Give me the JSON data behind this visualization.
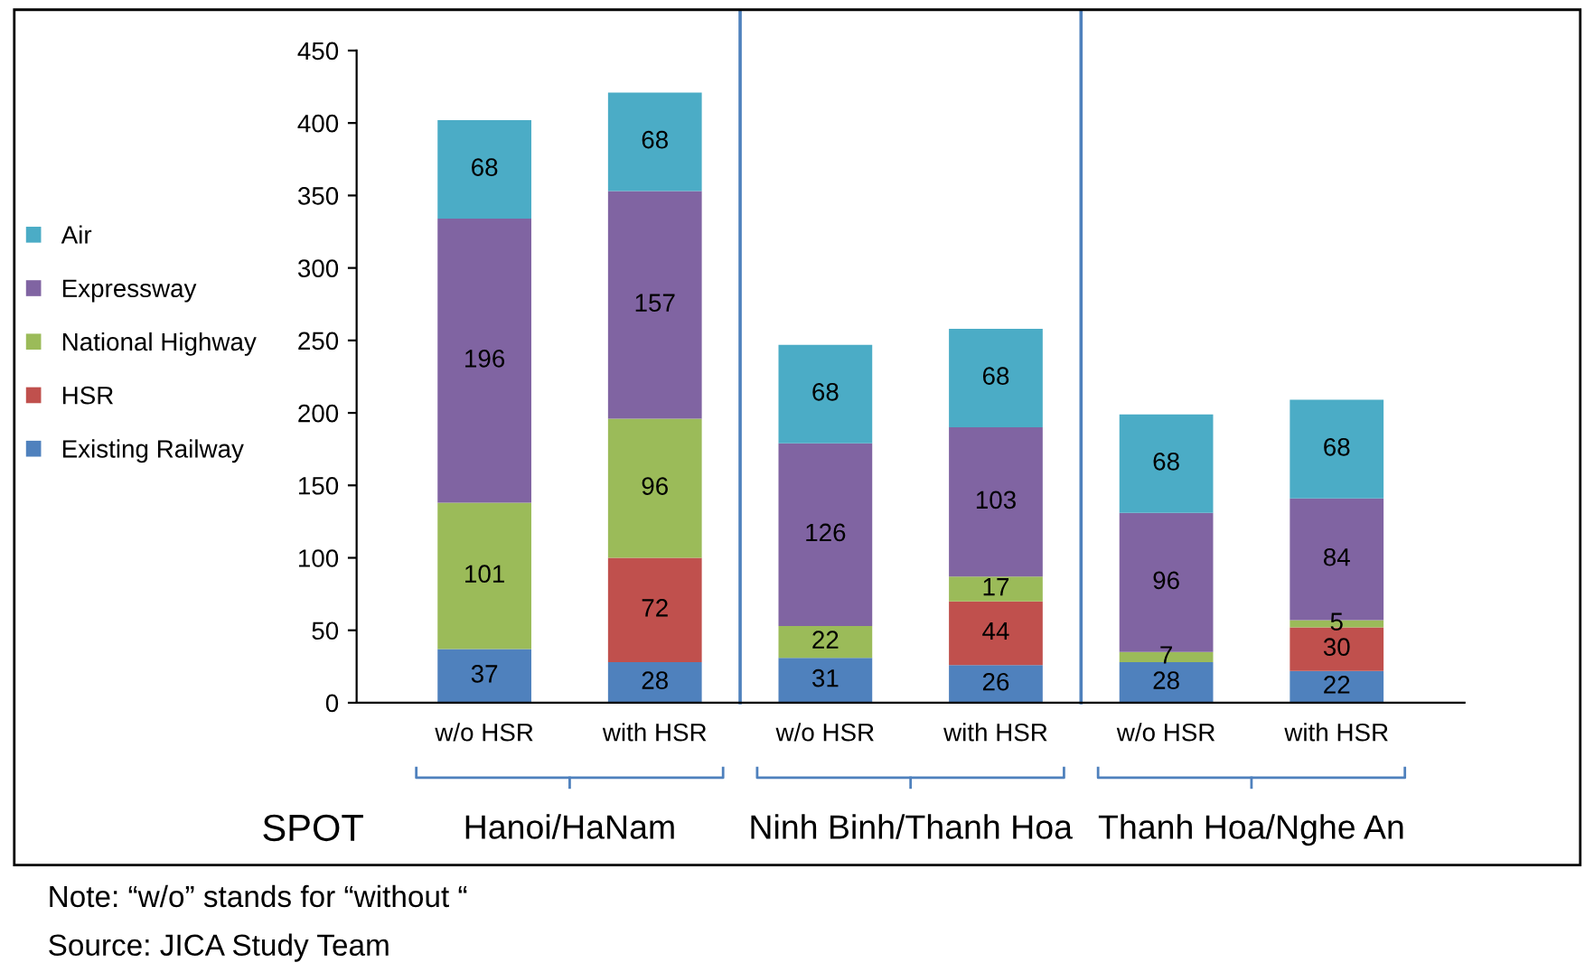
{
  "chart_data": {
    "type": "bar",
    "stacked": true,
    "data_labels": true,
    "legend": "left",
    "grid": false,
    "categories": [
      "w/o HSR",
      "with HSR",
      "w/o HSR",
      "with HSR",
      "w/o HSR",
      "with HSR"
    ],
    "series": [
      {
        "name": "Existing Railway",
        "color": "#4f81bd",
        "values": [
          37,
          28,
          31,
          26,
          28,
          22
        ]
      },
      {
        "name": "HSR",
        "color": "#c0504d",
        "values": [
          null,
          72,
          null,
          44,
          null,
          30
        ]
      },
      {
        "name": "National Highway",
        "color": "#9bbb59",
        "values": [
          101,
          96,
          22,
          17,
          7,
          5
        ]
      },
      {
        "name": "Expressway",
        "color": "#8064a2",
        "values": [
          196,
          157,
          126,
          103,
          96,
          84
        ]
      },
      {
        "name": "Air",
        "color": "#4bacc6",
        "values": [
          68,
          68,
          68,
          68,
          68,
          68
        ]
      }
    ],
    "ylim": [
      0,
      450
    ],
    "yticks": [
      0,
      50,
      100,
      150,
      200,
      250,
      300,
      350,
      400,
      450
    ],
    "annotations": [
      "SPOT",
      "Hanoi/HaNam",
      "Ninh Binh/Thanh Hoa",
      "Thanh Hoa/Nghe An",
      "Note: “w/o” stands for “without “",
      "Source: JICA Study Team"
    ]
  }
}
